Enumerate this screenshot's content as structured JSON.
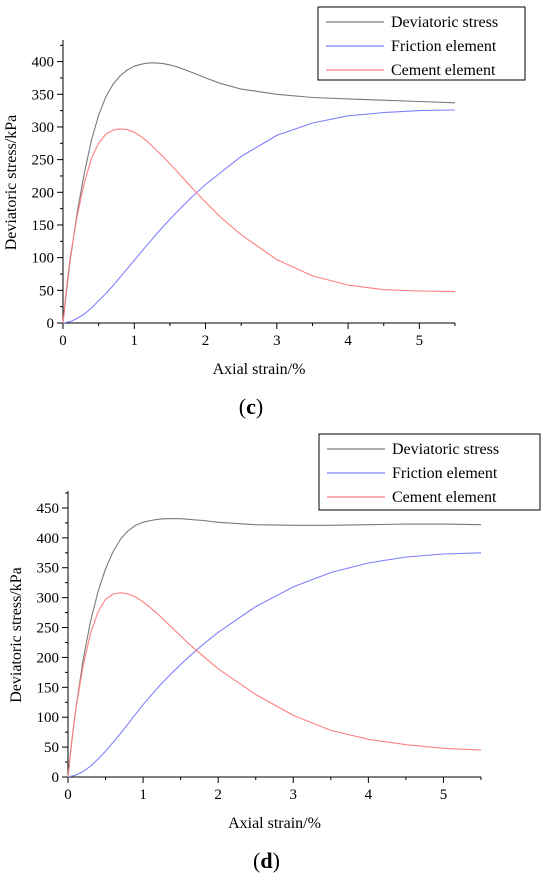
{
  "chart_data": [
    {
      "type": "line",
      "panel_label": "c",
      "xlabel": "Axial strain/%",
      "ylabel": "Deviatoric stress/kPa",
      "xlim": [
        0,
        5.5
      ],
      "ylim": [
        0,
        430
      ],
      "xticks": [
        0,
        1,
        2,
        3,
        4,
        5
      ],
      "yticks": [
        0,
        50,
        100,
        150,
        200,
        250,
        300,
        350,
        400
      ],
      "legend_position": "top-right",
      "grid": false,
      "series": [
        {
          "name": "Deviatoric stress",
          "color": "#7a7a7a",
          "x": [
            0,
            0.05,
            0.1,
            0.2,
            0.3,
            0.4,
            0.5,
            0.6,
            0.7,
            0.8,
            0.9,
            1.0,
            1.1,
            1.2,
            1.3,
            1.4,
            1.5,
            1.6,
            1.8,
            2.0,
            2.2,
            2.5,
            3.0,
            3.5,
            4.0,
            4.5,
            5.0,
            5.5
          ],
          "y": [
            0,
            50,
            95,
            170,
            230,
            280,
            318,
            346,
            365,
            378,
            387,
            393,
            396,
            398,
            398,
            397,
            395,
            392,
            384,
            375,
            367,
            358,
            350,
            345,
            343,
            341,
            339,
            337
          ]
        },
        {
          "name": "Friction element",
          "color": "#7f7fff",
          "x": [
            0,
            0.1,
            0.2,
            0.3,
            0.4,
            0.5,
            0.6,
            0.7,
            0.8,
            0.9,
            1.0,
            1.2,
            1.4,
            1.6,
            1.8,
            2.0,
            2.5,
            3.0,
            3.5,
            4.0,
            4.5,
            5.0,
            5.5
          ],
          "y": [
            0,
            2,
            7,
            14,
            23,
            34,
            45,
            57,
            70,
            83,
            96,
            122,
            147,
            170,
            192,
            212,
            255,
            287,
            306,
            317,
            322,
            325,
            326
          ]
        },
        {
          "name": "Cement element",
          "color": "#ff7f7f",
          "x": [
            0,
            0.05,
            0.1,
            0.2,
            0.3,
            0.4,
            0.5,
            0.6,
            0.7,
            0.8,
            0.9,
            1.0,
            1.1,
            1.2,
            1.4,
            1.6,
            1.8,
            2.0,
            2.2,
            2.5,
            3.0,
            3.5,
            4.0,
            4.5,
            5.0,
            5.5
          ],
          "y": [
            0,
            55,
            100,
            165,
            215,
            252,
            275,
            289,
            295,
            297,
            296,
            292,
            285,
            276,
            255,
            232,
            208,
            185,
            163,
            135,
            97,
            72,
            58,
            51,
            49,
            48
          ]
        }
      ]
    },
    {
      "type": "line",
      "panel_label": "d",
      "xlabel": "Axial strain/%",
      "ylabel": "Deviatoric stress/kPa",
      "xlim": [
        0,
        5.5
      ],
      "ylim": [
        0,
        475
      ],
      "xticks": [
        0,
        1,
        2,
        3,
        4,
        5
      ],
      "yticks": [
        0,
        50,
        100,
        150,
        200,
        250,
        300,
        350,
        400,
        450
      ],
      "legend_position": "top-right",
      "grid": false,
      "series": [
        {
          "name": "Deviatoric stress",
          "color": "#7a7a7a",
          "x": [
            0,
            0.05,
            0.1,
            0.2,
            0.3,
            0.4,
            0.5,
            0.6,
            0.7,
            0.8,
            0.9,
            1.0,
            1.1,
            1.2,
            1.3,
            1.4,
            1.5,
            1.6,
            1.8,
            2.0,
            2.5,
            3.0,
            3.5,
            4.0,
            4.5,
            5.0,
            5.5
          ],
          "y": [
            0,
            60,
            110,
            195,
            260,
            310,
            348,
            377,
            398,
            412,
            421,
            426,
            429,
            431,
            432,
            432,
            432,
            431,
            429,
            426,
            422,
            421,
            421,
            422,
            423,
            423,
            422
          ]
        },
        {
          "name": "Friction element",
          "color": "#7f7fff",
          "x": [
            0,
            0.1,
            0.2,
            0.3,
            0.4,
            0.5,
            0.6,
            0.7,
            0.8,
            0.9,
            1.0,
            1.2,
            1.4,
            1.6,
            1.8,
            2.0,
            2.5,
            3.0,
            3.5,
            4.0,
            4.5,
            5.0,
            5.5
          ],
          "y": [
            0,
            3,
            9,
            18,
            30,
            43,
            58,
            73,
            89,
            105,
            121,
            150,
            176,
            200,
            222,
            242,
            285,
            318,
            342,
            358,
            368,
            373,
            375
          ]
        },
        {
          "name": "Cement element",
          "color": "#ff7f7f",
          "x": [
            0,
            0.05,
            0.1,
            0.2,
            0.3,
            0.4,
            0.5,
            0.6,
            0.7,
            0.8,
            0.9,
            1.0,
            1.1,
            1.2,
            1.4,
            1.6,
            1.8,
            2.0,
            2.5,
            3.0,
            3.5,
            4.0,
            4.5,
            5.0,
            5.5
          ],
          "y": [
            0,
            60,
            110,
            185,
            240,
            276,
            297,
            306,
            308,
            306,
            301,
            293,
            283,
            272,
            248,
            224,
            202,
            181,
            138,
            103,
            78,
            63,
            54,
            48,
            45
          ]
        }
      ]
    }
  ]
}
